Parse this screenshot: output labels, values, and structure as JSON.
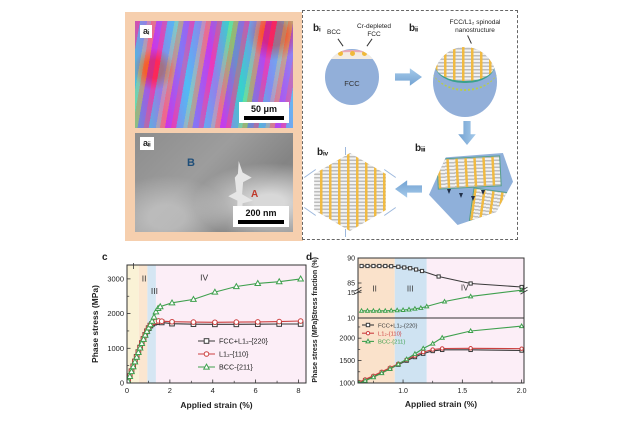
{
  "colors": {
    "panel_a_frame": "#f6cfae",
    "fcc_blue": "#92afd9",
    "bcc_yellow": "#f0b93a",
    "teal_boundary": "#3aa08e",
    "block_arrow_blue": "#8fbce6",
    "series_black": "#3a3a3a",
    "series_red": "#cc4040",
    "series_green": "#3fa04e"
  },
  "panel_a": {
    "ai_label": "aᵢ",
    "ai_scale": "50 μm",
    "aii_label": "aᵢᵢ",
    "aii_scale": "200 nm",
    "region_b": "B",
    "region_a": "A"
  },
  "panel_b": {
    "bi_label": "bᵢ",
    "bii_label": "bᵢᵢ",
    "biii_label": "bᵢᵢᵢ",
    "biv_label": "bᵢᵥ",
    "bcc_annotation": "BCC",
    "cr_depleted_annotation": "Cr-depleted\nFCC",
    "fcc_label": "FCC",
    "spinodal_annotation": "FCC/L1₂ spinodal\nnanostructure"
  },
  "chart_data": [
    {
      "id": "c",
      "type": "line",
      "panel_label": "c",
      "xlabel": "Applied strain (%)",
      "ylabel": "Phase stress (MPa)",
      "x_range": [
        0,
        8.35
      ],
      "y_range": [
        0,
        3400
      ],
      "x_ticks": [
        0,
        2,
        4,
        6,
        8
      ],
      "x_tick_labels": [
        "0",
        "2",
        "4",
        "6",
        "8"
      ],
      "x_minor_ticks": [
        1,
        3,
        5,
        7
      ],
      "y_ticks": [
        0,
        1000,
        2000,
        3000
      ],
      "y_minor_ticks": [
        500,
        1500,
        2500
      ],
      "bands": [
        {
          "label": "I",
          "from": 0,
          "to": 0.55,
          "color": "#faf2d6"
        },
        {
          "label": "II",
          "from": 0.55,
          "to": 0.95,
          "color": "#fbe6d0"
        },
        {
          "label": "III",
          "from": 0.95,
          "to": 1.35,
          "color": "#d5e6f3"
        },
        {
          "label": "IV",
          "from": 1.35,
          "to": 8.35,
          "color": "#fceef7"
        }
      ],
      "region_labels": [
        {
          "text": "I",
          "x": 0.3,
          "y": 3280
        },
        {
          "text": "II",
          "x": 0.8,
          "y": 2930
        },
        {
          "text": "III",
          "x": 1.28,
          "y": 2570
        },
        {
          "text": "IV",
          "x": 3.6,
          "y": 2950
        }
      ],
      "series": [
        {
          "name": "FCC+L1₂-{220}",
          "color": "#3a3a3a",
          "marker": "square",
          "x": [
            0.05,
            0.13,
            0.21,
            0.29,
            0.37,
            0.45,
            0.53,
            0.61,
            0.69,
            0.77,
            0.85,
            0.93,
            1.01,
            1.09,
            1.17,
            1.26,
            1.35,
            1.47,
            1.62,
            2.1,
            3.1,
            4.1,
            5.1,
            6.1,
            7.1,
            8.1
          ],
          "y": [
            60,
            200,
            340,
            480,
            620,
            755,
            890,
            1020,
            1150,
            1270,
            1385,
            1490,
            1580,
            1655,
            1705,
            1735,
            1750,
            1755,
            1745,
            1710,
            1695,
            1690,
            1690,
            1695,
            1700,
            1700
          ]
        },
        {
          "name": "L1₂-{110}",
          "color": "#cc4040",
          "marker": "circle",
          "x": [
            0.05,
            0.13,
            0.21,
            0.29,
            0.37,
            0.45,
            0.53,
            0.61,
            0.69,
            0.77,
            0.85,
            0.93,
            1.01,
            1.09,
            1.17,
            1.26,
            1.35,
            1.47,
            1.62,
            2.1,
            3.1,
            4.1,
            5.1,
            6.1,
            7.1,
            8.1
          ],
          "y": [
            80,
            220,
            360,
            500,
            640,
            775,
            910,
            1040,
            1170,
            1290,
            1405,
            1510,
            1600,
            1675,
            1725,
            1755,
            1775,
            1790,
            1780,
            1765,
            1755,
            1750,
            1755,
            1760,
            1770,
            1785
          ]
        },
        {
          "name": "BCC-{211}",
          "color": "#3fa04e",
          "marker": "triangle",
          "x": [
            0.05,
            0.13,
            0.21,
            0.29,
            0.37,
            0.45,
            0.53,
            0.61,
            0.69,
            0.77,
            0.85,
            0.93,
            1.01,
            1.09,
            1.17,
            1.26,
            1.35,
            1.45,
            1.55,
            2.1,
            3.1,
            4.1,
            5.1,
            6.1,
            7.1,
            8.1
          ],
          "y": [
            50,
            190,
            330,
            470,
            610,
            745,
            880,
            1010,
            1140,
            1260,
            1380,
            1490,
            1590,
            1680,
            1780,
            1900,
            2050,
            2150,
            2200,
            2310,
            2410,
            2620,
            2780,
            2870,
            2920,
            3000
          ]
        }
      ],
      "legend": {
        "show": true,
        "text_colored": false
      }
    },
    {
      "id": "d-top",
      "type": "line",
      "panel_label": "d",
      "ylabel": "Stress fraction (%)",
      "x_range": [
        0.62,
        2.02
      ],
      "x_ticks": [],
      "y_segments": [
        {
          "range": [
            84,
            90
          ],
          "frac": [
            0,
            0.5
          ],
          "ticks": [
            90,
            85
          ]
        },
        {
          "range": [
            10,
            15.6
          ],
          "frac": [
            0.52,
            1
          ],
          "ticks": [
            15,
            10
          ]
        }
      ],
      "bands": [
        {
          "label": "II",
          "from": 0.62,
          "to": 0.93,
          "color": "#fae2cb"
        },
        {
          "label": "III",
          "from": 0.93,
          "to": 1.2,
          "color": "#cfe3f2"
        },
        {
          "label": "IV",
          "from": 1.2,
          "to": 2.02,
          "color": "#fceef7"
        }
      ],
      "region_labels": [
        {
          "text": "II",
          "x": 0.76,
          "yfrac": 0.56
        },
        {
          "text": "III",
          "x": 1.06,
          "yfrac": 0.56
        },
        {
          "text": "IV",
          "x": 1.52,
          "yfrac": 0.54
        }
      ],
      "series": [
        {
          "name": "FCC+L1₂ stress fraction",
          "color": "#3a3a3a",
          "marker": "square",
          "x": [
            0.65,
            0.7,
            0.75,
            0.8,
            0.85,
            0.9,
            0.96,
            1.01,
            1.06,
            1.11,
            1.16,
            1.3,
            1.57,
            2.0
          ],
          "y": [
            88.4,
            88.4,
            88.4,
            88.4,
            88.4,
            88.35,
            88.25,
            88.1,
            87.95,
            87.7,
            87.4,
            86.3,
            84.9,
            84.2
          ]
        },
        {
          "name": "BCC stress fraction",
          "color": "#3fa04e",
          "marker": "triangle",
          "x": [
            0.65,
            0.7,
            0.75,
            0.8,
            0.85,
            0.9,
            0.95,
            1.0,
            1.05,
            1.1,
            1.15,
            1.2,
            1.35,
            1.57,
            2.0
          ],
          "y": [
            11.4,
            11.4,
            11.4,
            11.4,
            11.4,
            11.45,
            11.5,
            11.55,
            11.65,
            11.8,
            11.95,
            12.25,
            13.2,
            14.2,
            15.4
          ]
        }
      ],
      "legend": {
        "show": false
      }
    },
    {
      "id": "d-bottom",
      "type": "line",
      "xlabel": "Applied strain (%)",
      "ylabel": "Phase stress (MPa)",
      "x_range": [
        0.62,
        2.02
      ],
      "y_range": [
        1000,
        2450
      ],
      "x_ticks": [
        1.0,
        1.5,
        2.0
      ],
      "x_tick_labels": [
        "1.0",
        "1.5",
        "2.0"
      ],
      "x_minor_ticks": [
        0.75,
        1.25,
        1.75
      ],
      "y_ticks": [
        1000,
        1500,
        2000
      ],
      "y_minor_ticks": [
        1250,
        1750,
        2250
      ],
      "bands": [
        {
          "label": "II",
          "from": 0.62,
          "to": 0.93,
          "color": "#fae2cb"
        },
        {
          "label": "III",
          "from": 0.93,
          "to": 1.2,
          "color": "#cfe3f2"
        },
        {
          "label": "IV",
          "from": 1.2,
          "to": 2.02,
          "color": "#fceef7"
        }
      ],
      "region_labels": [],
      "series": [
        {
          "name": "FCC+L1₂-{220}",
          "color": "#3a3a3a",
          "marker": "square",
          "x": [
            0.63,
            0.68,
            0.75,
            0.82,
            0.89,
            0.96,
            1.03,
            1.1,
            1.17,
            1.25,
            1.33,
            1.57,
            2.0
          ],
          "y": [
            1005,
            1060,
            1140,
            1230,
            1320,
            1410,
            1500,
            1580,
            1655,
            1715,
            1740,
            1740,
            1725
          ]
        },
        {
          "name": "L1₂-{110}",
          "color": "#cc4040",
          "marker": "circle",
          "x": [
            0.63,
            0.68,
            0.75,
            0.82,
            0.89,
            0.96,
            1.03,
            1.1,
            1.17,
            1.25,
            1.33,
            1.57,
            2.0
          ],
          "y": [
            1020,
            1080,
            1160,
            1250,
            1340,
            1430,
            1520,
            1610,
            1690,
            1745,
            1770,
            1775,
            1765
          ]
        },
        {
          "name": "BCC-{211}",
          "color": "#3fa04e",
          "marker": "triangle",
          "x": [
            0.63,
            0.68,
            0.75,
            0.82,
            0.89,
            0.96,
            1.03,
            1.1,
            1.17,
            1.25,
            1.33,
            1.57,
            2.0
          ],
          "y": [
            995,
            1050,
            1130,
            1220,
            1315,
            1420,
            1530,
            1650,
            1770,
            1880,
            2010,
            2160,
            2270
          ]
        }
      ],
      "legend": {
        "show": true,
        "text_colored": true
      }
    }
  ]
}
